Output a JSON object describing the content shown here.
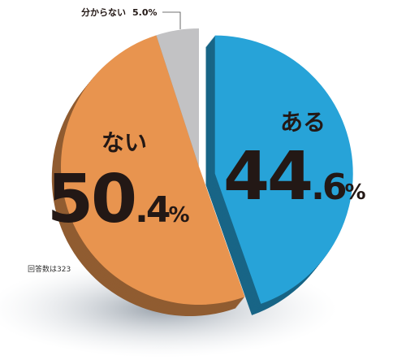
{
  "chart_data": {
    "type": "pie",
    "categories": [
      "ある",
      "ない",
      "分からない"
    ],
    "values": [
      44.6,
      50.4,
      5.0
    ],
    "value_labels": [
      "44.6%",
      "50.4%",
      "5.0%"
    ],
    "colors": [
      "#27a3d8",
      "#e8944f",
      "#c2c2c4"
    ],
    "annotation": "回答数は323"
  }
}
